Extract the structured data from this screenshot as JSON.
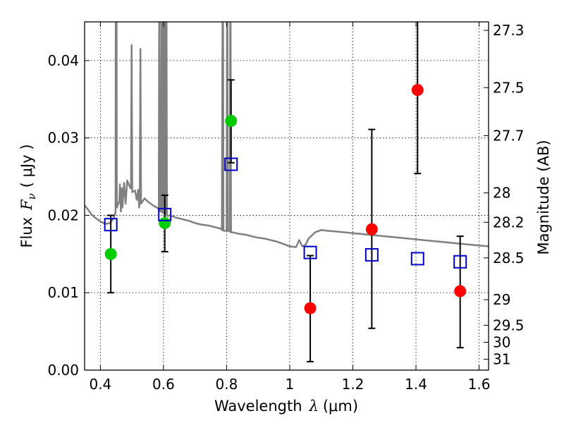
{
  "chart_data": {
    "type": "scatter",
    "title": "",
    "xlabel": {
      "prefix": "Wavelength",
      "symbol": "λ",
      "unit": "(μm)"
    },
    "ylabel": {
      "prefix": "Flux",
      "symbol": "F",
      "subscript": "ν",
      "unit": "( μJy )"
    },
    "y2label": "Magnitude (AB)",
    "xlim": [
      0.35,
      1.63
    ],
    "ylim": [
      0.0,
      0.045
    ],
    "grid": true,
    "x_ticks": [
      0.4,
      0.6,
      0.8,
      1.0,
      1.2,
      1.4,
      1.6
    ],
    "x_tick_labels": [
      "0.4",
      "0.6",
      "0.8",
      "1",
      "1.2",
      "1.4",
      "1.6"
    ],
    "y_ticks": [
      0.0,
      0.01,
      0.02,
      0.03,
      0.04
    ],
    "y_tick_labels": [
      "0.00",
      "0.01",
      "0.02",
      "0.03",
      "0.04"
    ],
    "y2_ticks": [
      {
        "label": "27.3",
        "flux": 0.0439
      },
      {
        "label": "27.5",
        "flux": 0.0365
      },
      {
        "label": "27.7",
        "flux": 0.0303
      },
      {
        "label": "28",
        "flux": 0.0229
      },
      {
        "label": "28.2",
        "flux": 0.0191
      },
      {
        "label": "28.5",
        "flux": 0.0145
      },
      {
        "label": "29",
        "flux": 0.0091
      },
      {
        "label": "29.5",
        "flux": 0.0058
      },
      {
        "label": "30",
        "flux": 0.0036
      },
      {
        "label": "31",
        "flux": 0.0014
      }
    ],
    "colors": {
      "model": "#808080",
      "green": "#00cc00",
      "red": "#ff0000",
      "square": "#0000cc",
      "error": "#000000"
    },
    "series": [
      {
        "kind": "line",
        "points": [
          [
            0.35,
            0.0213
          ],
          [
            0.36,
            0.0208
          ],
          [
            0.37,
            0.0202
          ],
          [
            0.38,
            0.0198
          ],
          [
            0.39,
            0.0195
          ],
          [
            0.4,
            0.0192
          ],
          [
            0.41,
            0.019
          ],
          [
            0.42,
            0.0189
          ],
          [
            0.43,
            0.019
          ],
          [
            0.44,
            0.0195
          ],
          [
            0.445,
            0.02
          ],
          [
            0.448,
            0.0203
          ],
          [
            0.449,
            0.06
          ],
          [
            0.451,
            0.06
          ],
          [
            0.452,
            0.021
          ],
          [
            0.46,
            0.0218
          ],
          [
            0.462,
            0.024
          ],
          [
            0.465,
            0.0205
          ],
          [
            0.468,
            0.0235
          ],
          [
            0.47,
            0.021
          ],
          [
            0.475,
            0.0242
          ],
          [
            0.48,
            0.0215
          ],
          [
            0.485,
            0.0245
          ],
          [
            0.49,
            0.024
          ],
          [
            0.495,
            0.0235
          ],
          [
            0.497,
            0.0235
          ],
          [
            0.499,
            0.042
          ],
          [
            0.501,
            0.023
          ],
          [
            0.51,
            0.0232
          ],
          [
            0.515,
            0.022
          ],
          [
            0.52,
            0.0233
          ],
          [
            0.523,
            0.021
          ],
          [
            0.525,
            0.0225
          ],
          [
            0.527,
            0.0415
          ],
          [
            0.529,
            0.0215
          ],
          [
            0.54,
            0.0222
          ],
          [
            0.55,
            0.0218
          ],
          [
            0.56,
            0.0215
          ],
          [
            0.57,
            0.0212
          ],
          [
            0.58,
            0.021
          ],
          [
            0.585,
            0.0208
          ],
          [
            0.587,
            0.06
          ],
          [
            0.589,
            0.0205
          ],
          [
            0.593,
            0.0205
          ],
          [
            0.595,
            0.06
          ],
          [
            0.597,
            0.0203
          ],
          [
            0.6,
            0.0203
          ],
          [
            0.602,
            0.06
          ],
          [
            0.604,
            0.0201
          ],
          [
            0.607,
            0.0201
          ],
          [
            0.609,
            0.06
          ],
          [
            0.611,
            0.0199
          ],
          [
            0.62,
            0.02
          ],
          [
            0.64,
            0.0197
          ],
          [
            0.66,
            0.0195
          ],
          [
            0.68,
            0.0193
          ],
          [
            0.7,
            0.019
          ],
          [
            0.72,
            0.0188
          ],
          [
            0.74,
            0.0187
          ],
          [
            0.76,
            0.0185
          ],
          [
            0.78,
            0.0183
          ],
          [
            0.785,
            0.0181
          ],
          [
            0.788,
            0.06
          ],
          [
            0.79,
            0.018
          ],
          [
            0.8,
            0.018
          ],
          [
            0.802,
            0.06
          ],
          [
            0.804,
            0.018
          ],
          [
            0.81,
            0.0179
          ],
          [
            0.812,
            0.06
          ],
          [
            0.814,
            0.0178
          ],
          [
            0.82,
            0.0178
          ],
          [
            0.84,
            0.0176
          ],
          [
            0.86,
            0.0175
          ],
          [
            0.88,
            0.0173
          ],
          [
            0.9,
            0.0171
          ],
          [
            0.92,
            0.017
          ],
          [
            0.94,
            0.0168
          ],
          [
            0.96,
            0.0166
          ],
          [
            0.98,
            0.0163
          ],
          [
            1.0,
            0.016
          ],
          [
            1.02,
            0.0159
          ],
          [
            1.03,
            0.0168
          ],
          [
            1.04,
            0.016
          ],
          [
            1.05,
            0.0162
          ],
          [
            1.06,
            0.017
          ],
          [
            1.08,
            0.0178
          ],
          [
            1.1,
            0.0181
          ],
          [
            1.12,
            0.018
          ],
          [
            1.15,
            0.0179
          ],
          [
            1.2,
            0.0177
          ],
          [
            1.25,
            0.0175
          ],
          [
            1.3,
            0.0173
          ],
          [
            1.35,
            0.0171
          ],
          [
            1.4,
            0.0169
          ],
          [
            1.45,
            0.0167
          ],
          [
            1.5,
            0.0165
          ],
          [
            1.55,
            0.0163
          ],
          [
            1.6,
            0.0161
          ],
          [
            1.63,
            0.016
          ]
        ]
      },
      {
        "kind": "points",
        "marker": "circle",
        "color": "green",
        "points": [
          [
            0.433,
            0.015
          ],
          [
            0.604,
            0.019
          ],
          [
            0.814,
            0.0322
          ]
        ]
      },
      {
        "kind": "points",
        "marker": "circle",
        "color": "red",
        "points": [
          [
            1.065,
            0.008
          ],
          [
            1.26,
            0.0182
          ],
          [
            1.405,
            0.0362
          ],
          [
            1.54,
            0.0102
          ]
        ]
      },
      {
        "kind": "points",
        "marker": "square",
        "color": "square",
        "points": [
          [
            0.433,
            0.0188
          ],
          [
            0.604,
            0.0201
          ],
          [
            0.814,
            0.0266
          ],
          [
            1.065,
            0.0152
          ],
          [
            1.26,
            0.0149
          ],
          [
            1.405,
            0.0144
          ],
          [
            1.54,
            0.014
          ]
        ]
      },
      {
        "kind": "errorbars",
        "color": "error",
        "bars": [
          {
            "x": 0.433,
            "low": 0.01,
            "high": 0.02
          },
          {
            "x": 0.604,
            "low": 0.0153,
            "high": 0.0226
          },
          {
            "x": 0.814,
            "low": 0.0268,
            "high": 0.0375
          },
          {
            "x": 1.065,
            "low": 0.0011,
            "high": 0.0148
          },
          {
            "x": 1.26,
            "low": 0.0054,
            "high": 0.0311
          },
          {
            "x": 1.405,
            "low": 0.0254,
            "high": 0.046
          },
          {
            "x": 1.54,
            "low": 0.0029,
            "high": 0.0173
          }
        ]
      }
    ]
  }
}
